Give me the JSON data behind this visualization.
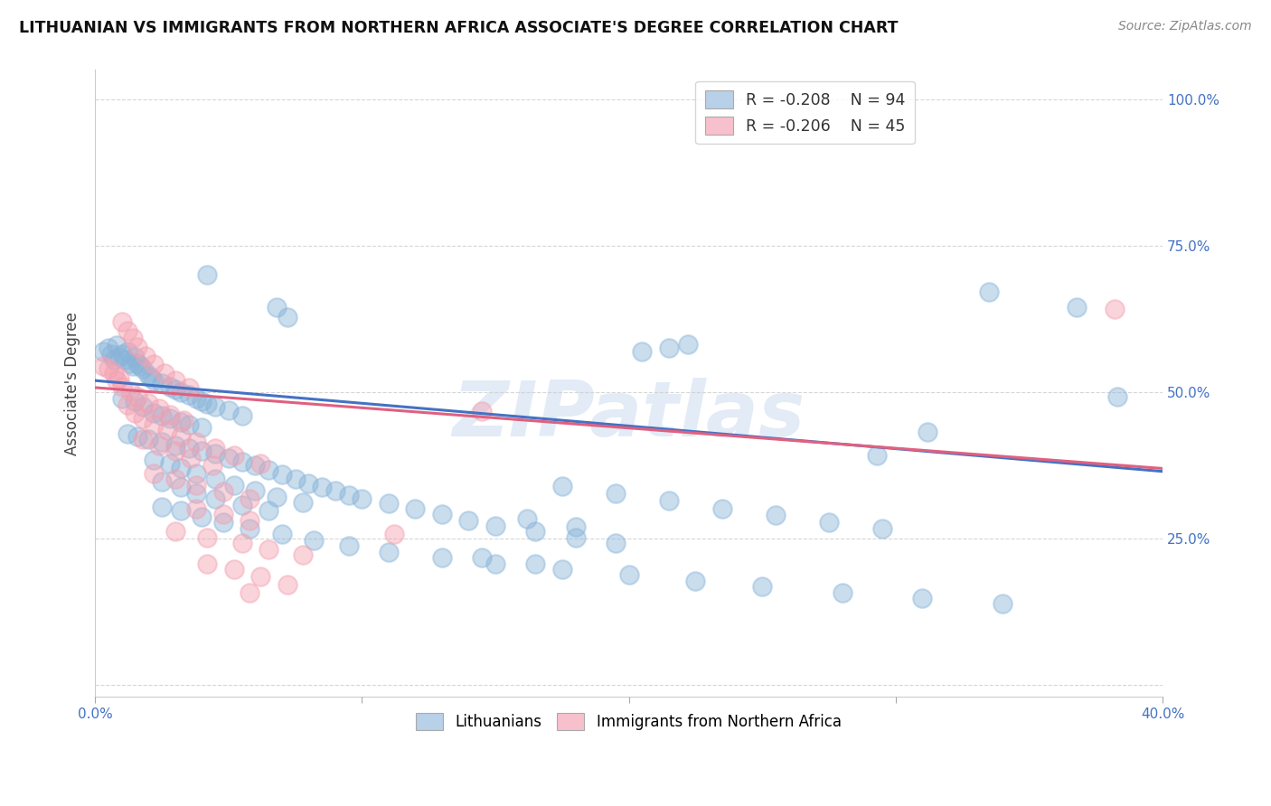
{
  "title": "LITHUANIAN VS IMMIGRANTS FROM NORTHERN AFRICA ASSOCIATE'S DEGREE CORRELATION CHART",
  "source": "Source: ZipAtlas.com",
  "ylabel": "Associate's Degree",
  "xlim": [
    0.0,
    0.4
  ],
  "ylim": [
    -0.02,
    1.05
  ],
  "group1_color": "#89b4d9",
  "group2_color": "#f4a0b0",
  "trendline1_color": "#4472c4",
  "trendline2_color": "#e06080",
  "watermark": "ZIPatlas",
  "blue_scatter": [
    [
      0.003,
      0.57
    ],
    [
      0.005,
      0.575
    ],
    [
      0.006,
      0.565
    ],
    [
      0.007,
      0.555
    ],
    [
      0.008,
      0.58
    ],
    [
      0.009,
      0.56
    ],
    [
      0.01,
      0.565
    ],
    [
      0.011,
      0.555
    ],
    [
      0.012,
      0.57
    ],
    [
      0.013,
      0.55
    ],
    [
      0.014,
      0.545
    ],
    [
      0.015,
      0.56
    ],
    [
      0.016,
      0.55
    ],
    [
      0.017,
      0.545
    ],
    [
      0.018,
      0.54
    ],
    [
      0.02,
      0.53
    ],
    [
      0.021,
      0.525
    ],
    [
      0.022,
      0.52
    ],
    [
      0.025,
      0.515
    ],
    [
      0.028,
      0.51
    ],
    [
      0.03,
      0.505
    ],
    [
      0.032,
      0.5
    ],
    [
      0.035,
      0.495
    ],
    [
      0.038,
      0.49
    ],
    [
      0.04,
      0.485
    ],
    [
      0.042,
      0.48
    ],
    [
      0.045,
      0.475
    ],
    [
      0.05,
      0.47
    ],
    [
      0.055,
      0.46
    ],
    [
      0.01,
      0.49
    ],
    [
      0.015,
      0.485
    ],
    [
      0.018,
      0.475
    ],
    [
      0.022,
      0.465
    ],
    [
      0.025,
      0.46
    ],
    [
      0.028,
      0.455
    ],
    [
      0.032,
      0.45
    ],
    [
      0.035,
      0.445
    ],
    [
      0.04,
      0.44
    ],
    [
      0.012,
      0.43
    ],
    [
      0.016,
      0.425
    ],
    [
      0.02,
      0.42
    ],
    [
      0.025,
      0.415
    ],
    [
      0.03,
      0.41
    ],
    [
      0.035,
      0.405
    ],
    [
      0.04,
      0.4
    ],
    [
      0.045,
      0.395
    ],
    [
      0.05,
      0.388
    ],
    [
      0.055,
      0.382
    ],
    [
      0.06,
      0.375
    ],
    [
      0.065,
      0.368
    ],
    [
      0.07,
      0.36
    ],
    [
      0.075,
      0.352
    ],
    [
      0.08,
      0.345
    ],
    [
      0.085,
      0.338
    ],
    [
      0.09,
      0.332
    ],
    [
      0.095,
      0.325
    ],
    [
      0.1,
      0.318
    ],
    [
      0.11,
      0.31
    ],
    [
      0.12,
      0.302
    ],
    [
      0.13,
      0.292
    ],
    [
      0.14,
      0.282
    ],
    [
      0.15,
      0.272
    ],
    [
      0.165,
      0.262
    ],
    [
      0.18,
      0.252
    ],
    [
      0.195,
      0.242
    ],
    [
      0.022,
      0.385
    ],
    [
      0.028,
      0.378
    ],
    [
      0.032,
      0.37
    ],
    [
      0.038,
      0.362
    ],
    [
      0.045,
      0.352
    ],
    [
      0.052,
      0.342
    ],
    [
      0.06,
      0.332
    ],
    [
      0.068,
      0.322
    ],
    [
      0.078,
      0.312
    ],
    [
      0.025,
      0.348
    ],
    [
      0.032,
      0.338
    ],
    [
      0.038,
      0.328
    ],
    [
      0.045,
      0.318
    ],
    [
      0.055,
      0.308
    ],
    [
      0.065,
      0.298
    ],
    [
      0.025,
      0.305
    ],
    [
      0.032,
      0.298
    ],
    [
      0.04,
      0.288
    ],
    [
      0.048,
      0.278
    ],
    [
      0.058,
      0.268
    ],
    [
      0.07,
      0.258
    ],
    [
      0.082,
      0.248
    ],
    [
      0.095,
      0.238
    ],
    [
      0.11,
      0.228
    ],
    [
      0.13,
      0.218
    ],
    [
      0.15,
      0.208
    ],
    [
      0.175,
      0.198
    ],
    [
      0.2,
      0.188
    ],
    [
      0.225,
      0.178
    ],
    [
      0.25,
      0.168
    ],
    [
      0.28,
      0.158
    ],
    [
      0.31,
      0.148
    ],
    [
      0.34,
      0.14
    ],
    [
      0.205,
      0.57
    ],
    [
      0.215,
      0.575
    ],
    [
      0.222,
      0.582
    ],
    [
      0.042,
      0.7
    ],
    [
      0.068,
      0.645
    ],
    [
      0.072,
      0.628
    ],
    [
      0.335,
      0.672
    ],
    [
      0.368,
      0.645
    ],
    [
      0.383,
      0.492
    ],
    [
      0.312,
      0.432
    ],
    [
      0.293,
      0.392
    ],
    [
      0.175,
      0.34
    ],
    [
      0.195,
      0.328
    ],
    [
      0.215,
      0.315
    ],
    [
      0.235,
      0.302
    ],
    [
      0.255,
      0.29
    ],
    [
      0.275,
      0.278
    ],
    [
      0.295,
      0.268
    ],
    [
      0.162,
      0.285
    ],
    [
      0.18,
      0.27
    ],
    [
      0.145,
      0.218
    ],
    [
      0.165,
      0.208
    ]
  ],
  "pink_scatter": [
    [
      0.003,
      0.545
    ],
    [
      0.005,
      0.54
    ],
    [
      0.007,
      0.532
    ],
    [
      0.009,
      0.525
    ],
    [
      0.01,
      0.62
    ],
    [
      0.012,
      0.605
    ],
    [
      0.014,
      0.592
    ],
    [
      0.016,
      0.578
    ],
    [
      0.019,
      0.562
    ],
    [
      0.022,
      0.548
    ],
    [
      0.026,
      0.532
    ],
    [
      0.03,
      0.52
    ],
    [
      0.035,
      0.508
    ],
    [
      0.008,
      0.52
    ],
    [
      0.01,
      0.51
    ],
    [
      0.013,
      0.502
    ],
    [
      0.016,
      0.492
    ],
    [
      0.02,
      0.482
    ],
    [
      0.024,
      0.472
    ],
    [
      0.028,
      0.462
    ],
    [
      0.033,
      0.452
    ],
    [
      0.012,
      0.478
    ],
    [
      0.015,
      0.465
    ],
    [
      0.018,
      0.455
    ],
    [
      0.022,
      0.445
    ],
    [
      0.027,
      0.435
    ],
    [
      0.032,
      0.425
    ],
    [
      0.038,
      0.415
    ],
    [
      0.045,
      0.405
    ],
    [
      0.052,
      0.392
    ],
    [
      0.062,
      0.378
    ],
    [
      0.018,
      0.42
    ],
    [
      0.024,
      0.41
    ],
    [
      0.03,
      0.4
    ],
    [
      0.036,
      0.388
    ],
    [
      0.044,
      0.375
    ],
    [
      0.022,
      0.362
    ],
    [
      0.03,
      0.352
    ],
    [
      0.038,
      0.342
    ],
    [
      0.048,
      0.33
    ],
    [
      0.058,
      0.318
    ],
    [
      0.038,
      0.302
    ],
    [
      0.048,
      0.292
    ],
    [
      0.058,
      0.282
    ],
    [
      0.03,
      0.262
    ],
    [
      0.042,
      0.252
    ],
    [
      0.055,
      0.242
    ],
    [
      0.065,
      0.232
    ],
    [
      0.078,
      0.222
    ],
    [
      0.042,
      0.208
    ],
    [
      0.052,
      0.198
    ],
    [
      0.062,
      0.185
    ],
    [
      0.072,
      0.172
    ],
    [
      0.058,
      0.158
    ],
    [
      0.145,
      0.468
    ],
    [
      0.112,
      0.258
    ],
    [
      0.382,
      0.642
    ]
  ],
  "trendline1_x0": 0.0,
  "trendline1_y0": 0.52,
  "trendline1_x1": 0.4,
  "trendline1_y1": 0.365,
  "trendline2_x0": 0.0,
  "trendline2_y0": 0.508,
  "trendline2_x1": 0.4,
  "trendline2_y1": 0.37
}
